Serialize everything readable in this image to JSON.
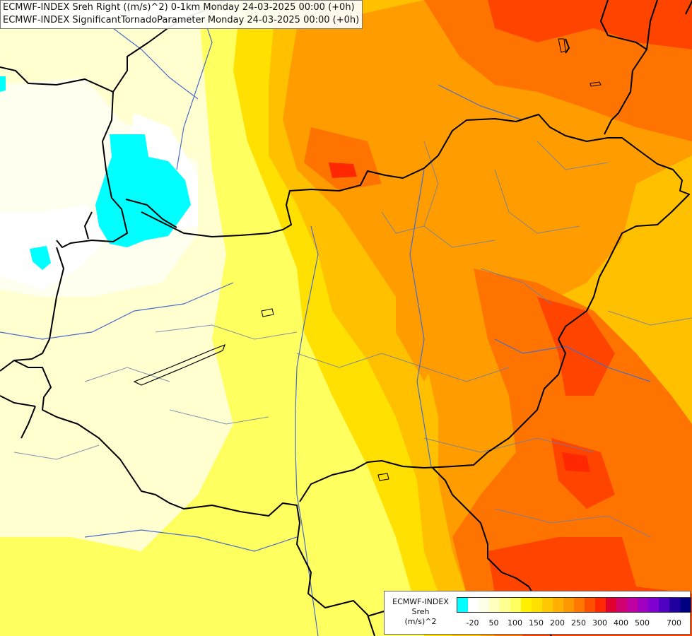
{
  "titles": {
    "line1": "ECMWF-INDEX Sreh Right ((m/s)^2) 0-1km Monday 24-03-2025 00:00 (+0h)",
    "line2": "ECMWF-INDEX SignificantTornadoParameter Monday 24-03-2025 00:00 (+0h)"
  },
  "legend": {
    "line1": "ECMWF-INDEX",
    "line2": "Sreh",
    "line3": "(m/s)^2",
    "colors": [
      "#00ffff",
      "#ffffff",
      "#ffffe8",
      "#ffffc0",
      "#ffff90",
      "#ffff60",
      "#fff000",
      "#ffe000",
      "#ffc800",
      "#ffb000",
      "#ff9800",
      "#ff7800",
      "#ff5000",
      "#ff2800",
      "#e00030",
      "#d00070",
      "#c000a0",
      "#a000c0",
      "#8000d0",
      "#5000c0",
      "#2000a0",
      "#000080"
    ],
    "ticks": [
      "-20",
      "50",
      "100",
      "150",
      "200",
      "250",
      "300",
      "400",
      "500",
      "700"
    ]
  },
  "palette": {
    "base": "#ffffd0",
    "pale": "#ffffb0",
    "yellow": "#ffff50",
    "gold": "#ffd700",
    "orange_light": "#ffb400",
    "orange": "#ff9000",
    "orange_dark": "#ff6a00",
    "red": "#ff3c00",
    "cyan": "#00ffff",
    "white": "#ffffff",
    "border": "#000000",
    "river": "#4a6cc8",
    "admin": "#6c7fa8"
  }
}
